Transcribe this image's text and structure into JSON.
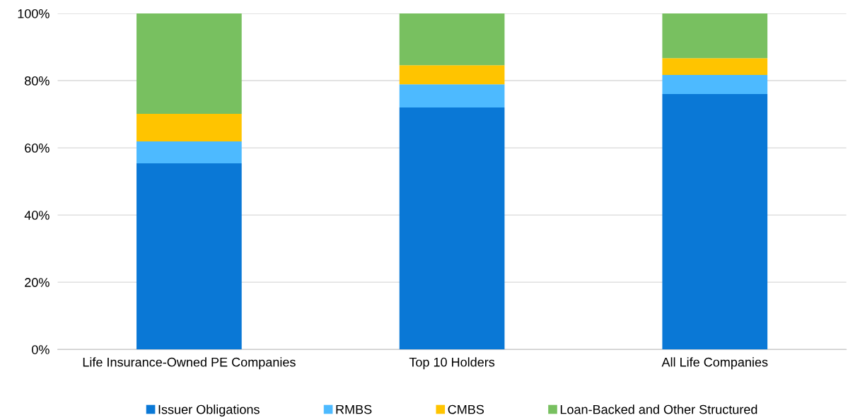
{
  "chart_data": {
    "type": "bar",
    "stacked": true,
    "categories": [
      "Life Insurance-Owned PE Companies",
      "Top 10 Holders",
      "All Life Companies"
    ],
    "series": [
      {
        "name": "Issuer Obligations",
        "color": "#0a78d6",
        "values": [
          55.4,
          72.0,
          76.0
        ]
      },
      {
        "name": "RMBS",
        "color": "#4dbaff",
        "values": [
          6.5,
          6.9,
          5.7
        ]
      },
      {
        "name": "CMBS",
        "color": "#ffc400",
        "values": [
          8.2,
          5.7,
          5.0
        ]
      },
      {
        "name": "Loan-Backed and Other Structured",
        "color": "#78c060",
        "values": [
          29.9,
          15.4,
          13.3
        ]
      }
    ],
    "ylim": [
      0,
      100
    ],
    "yticks": [
      {
        "value": 0,
        "label": "0%"
      },
      {
        "value": 20,
        "label": "20%"
      },
      {
        "value": 40,
        "label": "40%"
      },
      {
        "value": 60,
        "label": "60%"
      },
      {
        "value": 80,
        "label": "80%"
      },
      {
        "value": 100,
        "label": "100%"
      }
    ],
    "grid": "y",
    "legend": "bottom"
  }
}
